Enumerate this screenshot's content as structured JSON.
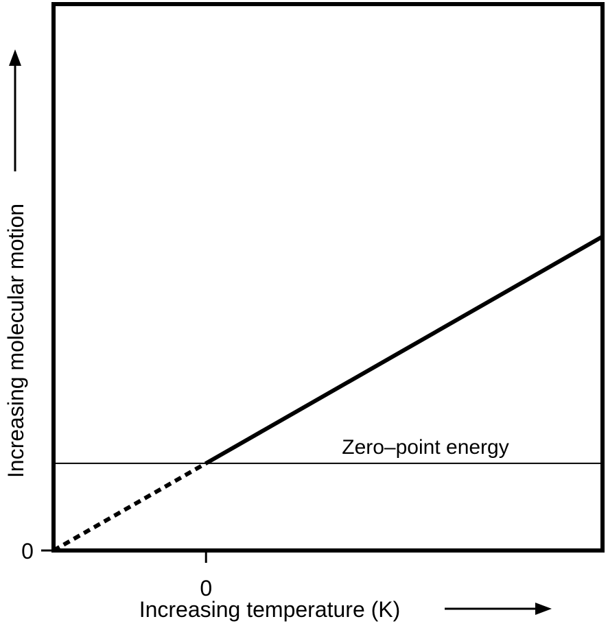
{
  "chart_data": {
    "type": "line",
    "title": "",
    "xlabel": "Increasing temperature (K)",
    "ylabel": "Increasing molecular motion",
    "x_tick_labels": [
      {
        "value": 0,
        "label": "0"
      }
    ],
    "y_tick_labels": [
      {
        "value": 0,
        "label": "0"
      }
    ],
    "xlim": [
      -1,
      2.6
    ],
    "ylim": [
      0,
      4.7
    ],
    "grid": false,
    "legend": "none",
    "series": [
      {
        "style": "dashed",
        "x": [
          -1,
          0
        ],
        "y": [
          0,
          0.75
        ]
      },
      {
        "style": "solid",
        "x": [
          0,
          2.6
        ],
        "y": [
          0.75,
          2.7
        ]
      }
    ],
    "reference_lines": [
      {
        "orientation": "horizontal",
        "y": 0.75,
        "label": "Zero–point energy"
      }
    ],
    "colors": {
      "line": "#000000",
      "frame": "#000000",
      "background": "#ffffff"
    }
  }
}
